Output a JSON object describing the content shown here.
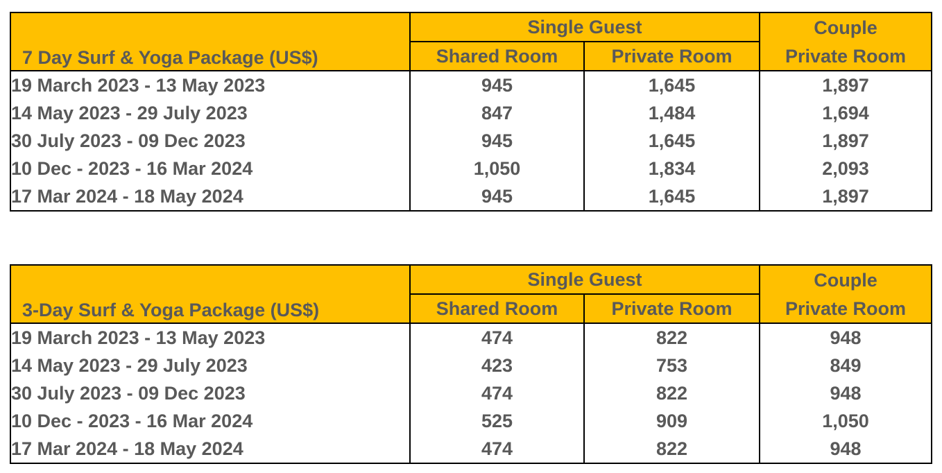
{
  "tables": [
    {
      "title": "7 Day Surf & Yoga Package (US$)",
      "group_single": "Single Guest",
      "group_couple": "Couple",
      "col_shared": "Shared Room",
      "col_private": "Private Room",
      "col_couple_private": "Private Room",
      "rows": [
        {
          "period": "19 March 2023 - 13 May 2023",
          "shared": "945",
          "private": "1,645",
          "couple": "1,897"
        },
        {
          "period": "14 May 2023 - 29 July 2023",
          "shared": "847",
          "private": "1,484",
          "couple": "1,694"
        },
        {
          "period": "30 July 2023 - 09 Dec 2023",
          "shared": "945",
          "private": "1,645",
          "couple": "1,897"
        },
        {
          "period": "10 Dec - 2023 - 16 Mar 2024",
          "shared": "1,050",
          "private": "1,834",
          "couple": "2,093"
        },
        {
          "period": "17 Mar 2024 - 18 May 2024",
          "shared": "945",
          "private": "1,645",
          "couple": "1,897"
        }
      ]
    },
    {
      "title": "3-Day Surf & Yoga Package (US$)",
      "group_single": "Single Guest",
      "group_couple": "Couple",
      "col_shared": "Shared Room",
      "col_private": "Private Room",
      "col_couple_private": "Private Room",
      "rows": [
        {
          "period": "19 March 2023 - 13 May 2023",
          "shared": "474",
          "private": "822",
          "couple": "948"
        },
        {
          "period": "14 May 2023 - 29 July 2023",
          "shared": "423",
          "private": "753",
          "couple": "849"
        },
        {
          "period": "30 July 2023 - 09 Dec 2023",
          "shared": "474",
          "private": "822",
          "couple": "948"
        },
        {
          "period": "10 Dec - 2023 - 16 Mar 2024",
          "shared": "525",
          "private": "909",
          "couple": "1,050"
        },
        {
          "period": "17 Mar 2024 - 18 May 2024",
          "shared": "474",
          "private": "822",
          "couple": "948"
        }
      ]
    }
  ],
  "colors": {
    "header_bg": "#ffc000",
    "text": "#595959",
    "border": "#000000"
  }
}
